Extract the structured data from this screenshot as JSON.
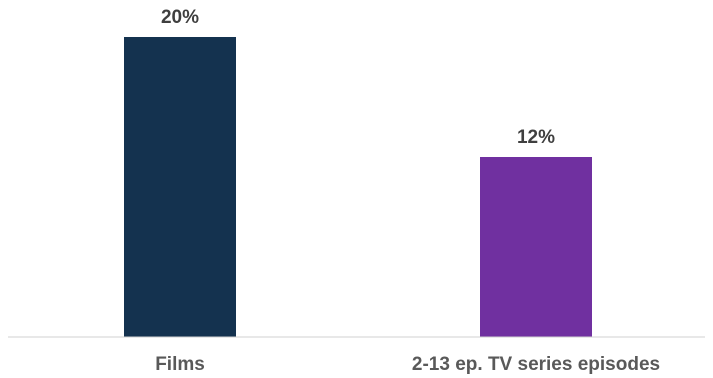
{
  "chart_data": {
    "type": "bar",
    "categories": [
      "Films",
      "2-13 ep. TV series episodes"
    ],
    "values": [
      20,
      12
    ],
    "data_labels": [
      "20%",
      "12%"
    ],
    "colors": [
      "#14324f",
      "#7030a0"
    ],
    "unit": "%",
    "ylim": [
      0,
      20
    ],
    "grid": false,
    "legend": "none"
  }
}
